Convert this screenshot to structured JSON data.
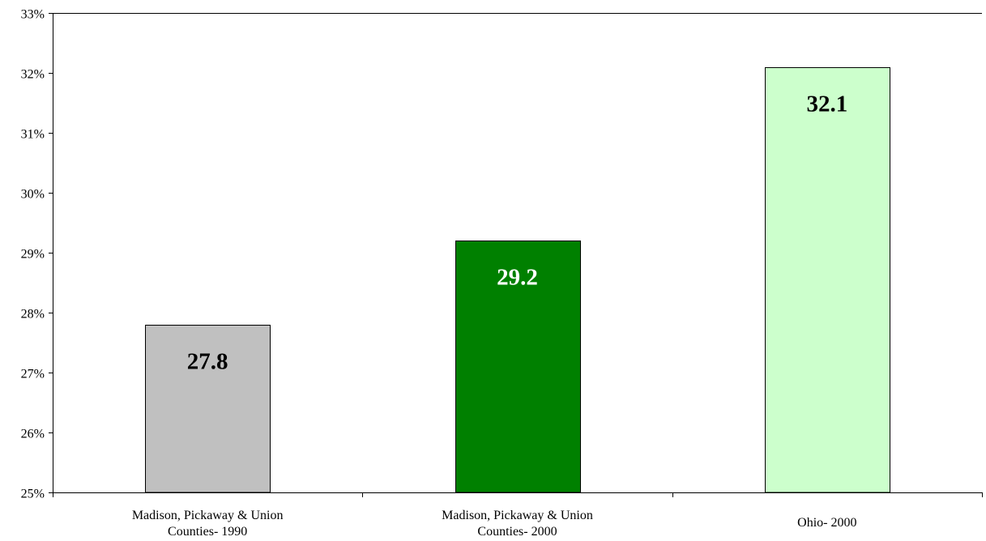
{
  "chart_data": {
    "type": "bar",
    "title": "",
    "xlabel": "",
    "ylabel": "",
    "ylim": [
      25,
      33
    ],
    "yticks": [
      25,
      26,
      27,
      28,
      29,
      30,
      31,
      32,
      33
    ],
    "ytick_labels": [
      "25%",
      "26%",
      "27%",
      "28%",
      "29%",
      "30%",
      "31%",
      "32%",
      "33%"
    ],
    "categories": [
      [
        "Madison, Pickaway & Union",
        "Counties- 1990"
      ],
      [
        "Madison, Pickaway & Union",
        "Counties- 2000"
      ],
      [
        "Ohio- 2000"
      ]
    ],
    "values": [
      27.8,
      29.2,
      32.1
    ],
    "data_labels": [
      "27.8",
      "29.2",
      "32.1"
    ],
    "bar_colors": [
      "#c0c0c0",
      "#008000",
      "#ccffcc"
    ],
    "data_label_colors": [
      "#000000",
      "#ffffff",
      "#000000"
    ],
    "grid": false,
    "legend": "none"
  }
}
